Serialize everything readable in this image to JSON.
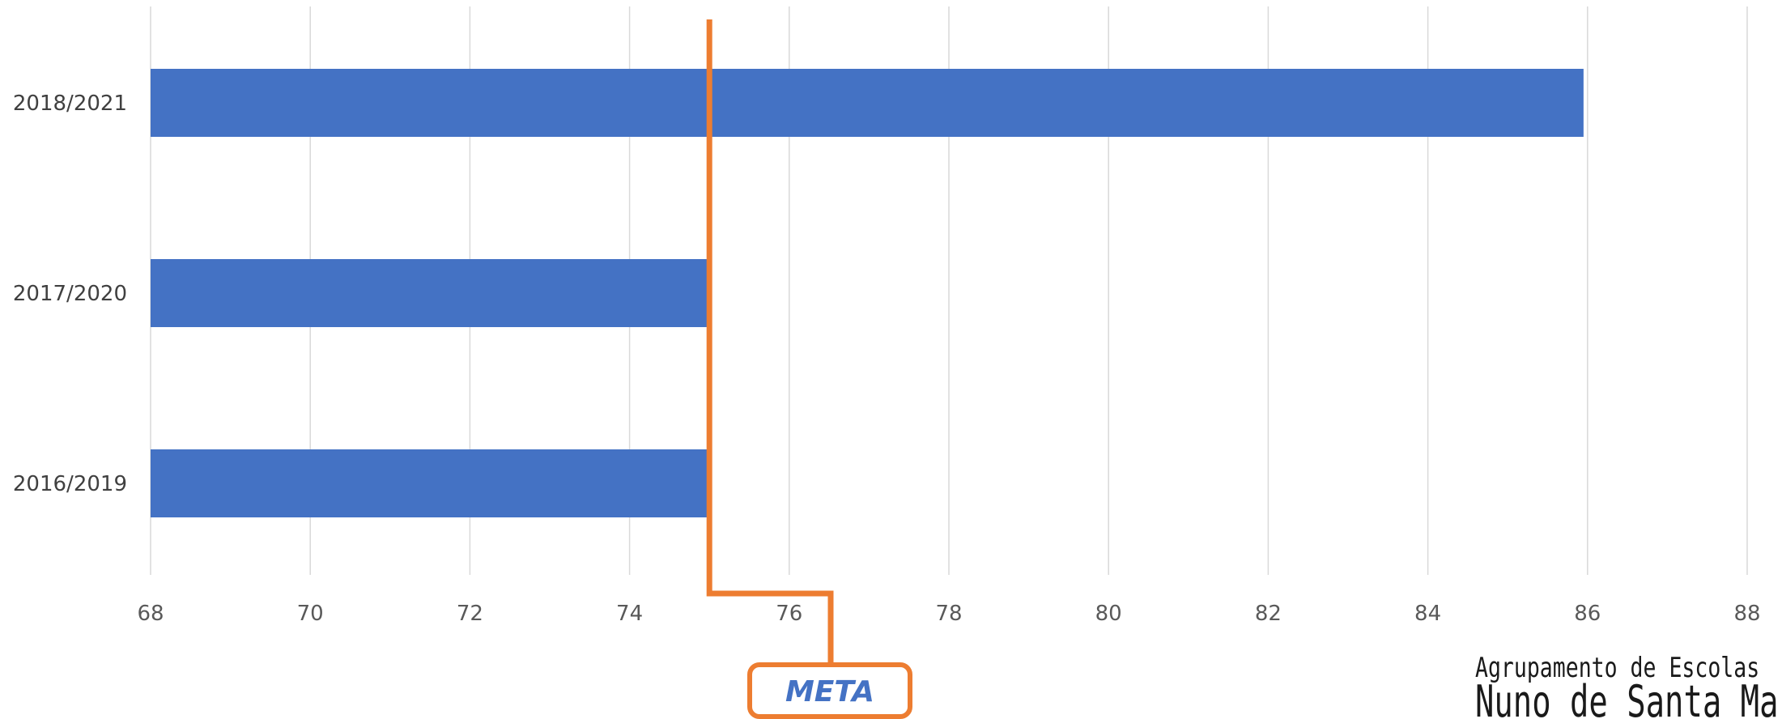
{
  "chart_data": {
    "type": "bar",
    "orientation": "horizontal",
    "categories": [
      "2018/2021",
      "2017/2020",
      "2016/2019"
    ],
    "values": [
      85.95,
      75.0,
      75.0
    ],
    "xlim": [
      68,
      88
    ],
    "xticks": [
      68,
      70,
      72,
      74,
      76,
      78,
      80,
      82,
      84,
      86,
      88
    ],
    "grid": true,
    "bar_color": "#4472C4",
    "target": {
      "label": "META",
      "value": 75,
      "color": "#ED7D31"
    }
  },
  "logo": {
    "line1": "Agrupamento de Escolas",
    "line2": "Nuno de Santa Maria"
  }
}
